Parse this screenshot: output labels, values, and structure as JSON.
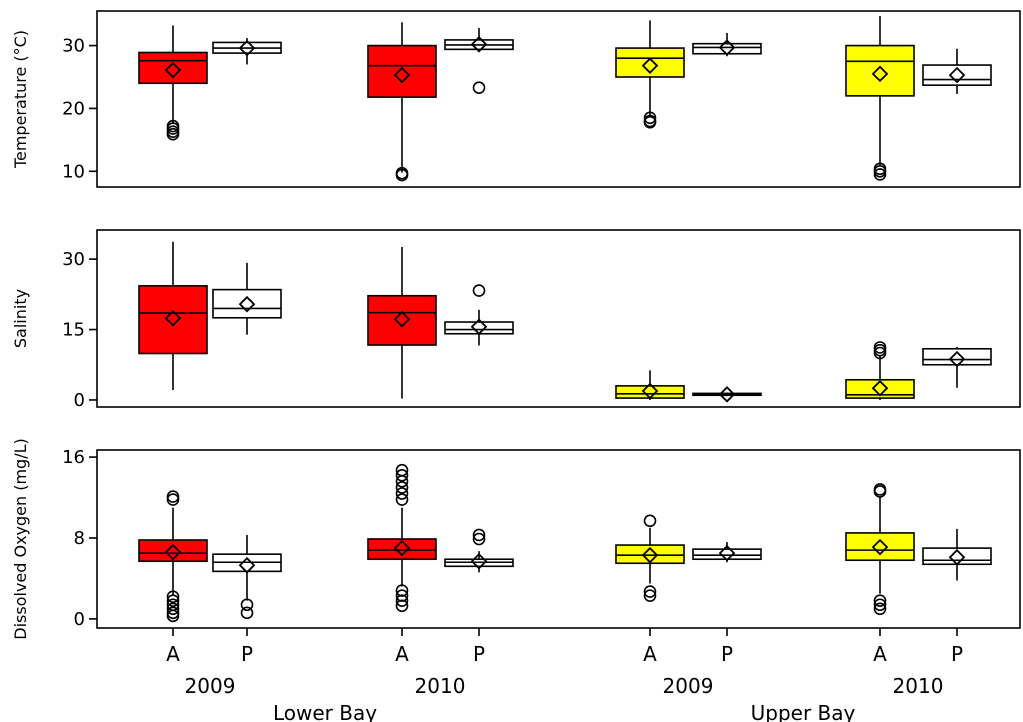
{
  "chart_data": {
    "type": "boxplot",
    "legend": "none",
    "grid": false,
    "categories": [
      {
        "group": "Lower Bay",
        "year": "2009",
        "label": "A",
        "color": "#ff0000"
      },
      {
        "group": "Lower Bay",
        "year": "2009",
        "label": "P",
        "color": "#ffffff"
      },
      {
        "group": "Lower Bay",
        "year": "2010",
        "label": "A",
        "color": "#ff0000"
      },
      {
        "group": "Lower Bay",
        "year": "2010",
        "label": "P",
        "color": "#ffffff"
      },
      {
        "group": "Upper Bay",
        "year": "2009",
        "label": "A",
        "color": "#ffff00"
      },
      {
        "group": "Upper Bay",
        "year": "2009",
        "label": "P",
        "color": "#ffffff"
      },
      {
        "group": "Upper Bay",
        "year": "2010",
        "label": "A",
        "color": "#ffff00"
      },
      {
        "group": "Upper Bay",
        "year": "2010",
        "label": "P",
        "color": "#ffffff"
      }
    ],
    "years": [
      "2009",
      "2010",
      "2009",
      "2010"
    ],
    "groups": [
      "Lower Bay",
      "Upper Bay"
    ],
    "panels": [
      {
        "ylabel": "Temperature (°C)",
        "ylim": [
          7.5,
          35.5
        ],
        "yticks": [
          10,
          20,
          30
        ],
        "boxes": [
          {
            "min": 17.5,
            "q1": 24.0,
            "median": 27.6,
            "q3": 28.9,
            "max": 33.2,
            "mean": 26.1,
            "outliers": [
              17.2,
              16.8,
              16.3,
              15.9
            ]
          },
          {
            "min": 27.0,
            "q1": 28.8,
            "median": 29.6,
            "q3": 30.5,
            "max": 31.2,
            "mean": 29.6,
            "outliers": []
          },
          {
            "min": 9.8,
            "q1": 21.8,
            "median": 26.8,
            "q3": 30.0,
            "max": 33.7,
            "mean": 25.3,
            "outliers": [
              9.7,
              9.4
            ]
          },
          {
            "min": 29.0,
            "q1": 29.4,
            "median": 30.1,
            "q3": 30.9,
            "max": 32.8,
            "mean": 30.2,
            "outliers": [
              23.3
            ]
          },
          {
            "min": 18.7,
            "q1": 25.0,
            "median": 28.0,
            "q3": 29.6,
            "max": 34.0,
            "mean": 26.8,
            "outliers": [
              18.5,
              18.0,
              17.8
            ]
          },
          {
            "min": 28.3,
            "q1": 28.7,
            "median": 29.7,
            "q3": 30.3,
            "max": 32.0,
            "mean": 29.7,
            "outliers": []
          },
          {
            "min": 10.9,
            "q1": 22.0,
            "median": 27.5,
            "q3": 30.0,
            "max": 34.7,
            "mean": 25.5,
            "outliers": [
              10.4,
              10.0,
              9.5
            ]
          },
          {
            "min": 22.3,
            "q1": 23.7,
            "median": 24.6,
            "q3": 26.9,
            "max": 29.5,
            "mean": 25.3,
            "outliers": []
          }
        ]
      },
      {
        "ylabel": "Salinity",
        "ylim": [
          -1.5,
          36.2
        ],
        "yticks": [
          0,
          15,
          30
        ],
        "boxes": [
          {
            "min": 2.1,
            "q1": 9.9,
            "median": 18.5,
            "q3": 24.3,
            "max": 33.7,
            "mean": 17.4,
            "outliers": []
          },
          {
            "min": 13.9,
            "q1": 17.5,
            "median": 19.5,
            "q3": 23.5,
            "max": 29.2,
            "mean": 20.4,
            "outliers": []
          },
          {
            "min": 0.3,
            "q1": 11.7,
            "median": 18.6,
            "q3": 22.2,
            "max": 32.6,
            "mean": 17.2,
            "outliers": []
          },
          {
            "min": 11.6,
            "q1": 14.1,
            "median": 15.0,
            "q3": 16.6,
            "max": 19.2,
            "mean": 15.6,
            "outliers": [
              23.3
            ]
          },
          {
            "min": 0.0,
            "q1": 0.4,
            "median": 1.3,
            "q3": 3.0,
            "max": 6.3,
            "mean": 1.9,
            "outliers": []
          },
          {
            "min": 0.8,
            "q1": 1.0,
            "median": 1.2,
            "q3": 1.4,
            "max": 1.6,
            "mean": 1.2,
            "outliers": []
          },
          {
            "min": 0.0,
            "q1": 0.4,
            "median": 1.1,
            "q3": 4.3,
            "max": 9.4,
            "mean": 2.5,
            "outliers": [
              10.0,
              10.6,
              11.2
            ]
          },
          {
            "min": 2.6,
            "q1": 7.5,
            "median": 8.6,
            "q3": 10.9,
            "max": 11.3,
            "mean": 8.7,
            "outliers": []
          }
        ]
      },
      {
        "ylabel": "Dissolved Oxygen (mg/L)",
        "ylim": [
          -0.9,
          16.7
        ],
        "yticks": [
          0,
          8,
          16
        ],
        "boxes": [
          {
            "min": 2.4,
            "q1": 5.7,
            "median": 6.5,
            "q3": 7.8,
            "max": 11.0,
            "mean": 6.6,
            "outliers": [
              11.8,
              12.1,
              2.2,
              1.8,
              1.4,
              1.0,
              0.6,
              0.3
            ]
          },
          {
            "min": 1.8,
            "q1": 4.7,
            "median": 5.6,
            "q3": 6.4,
            "max": 8.3,
            "mean": 5.3,
            "outliers": [
              1.4,
              0.6
            ]
          },
          {
            "min": 3.2,
            "q1": 5.9,
            "median": 6.8,
            "q3": 7.9,
            "max": 11.0,
            "mean": 7.0,
            "outliers": [
              11.8,
              12.4,
              13.0,
              13.6,
              14.2,
              14.7,
              2.8,
              2.3,
              1.8,
              1.3
            ]
          },
          {
            "min": 4.6,
            "q1": 5.2,
            "median": 5.6,
            "q3": 5.9,
            "max": 6.7,
            "mean": 5.7,
            "outliers": [
              7.9,
              8.3
            ]
          },
          {
            "min": 3.5,
            "q1": 5.5,
            "median": 6.3,
            "q3": 7.3,
            "max": 9.0,
            "mean": 6.3,
            "outliers": [
              9.7,
              2.7,
              2.3
            ]
          },
          {
            "min": 5.6,
            "q1": 5.9,
            "median": 6.3,
            "q3": 6.9,
            "max": 7.6,
            "mean": 6.5,
            "outliers": []
          },
          {
            "min": 2.5,
            "q1": 5.8,
            "median": 6.8,
            "q3": 8.5,
            "max": 12.0,
            "mean": 7.1,
            "outliers": [
              12.8,
              12.6,
              1.8,
              1.4,
              1.0
            ]
          },
          {
            "min": 3.8,
            "q1": 5.4,
            "median": 5.8,
            "q3": 7.0,
            "max": 8.9,
            "mean": 6.1,
            "outliers": []
          }
        ]
      }
    ]
  }
}
